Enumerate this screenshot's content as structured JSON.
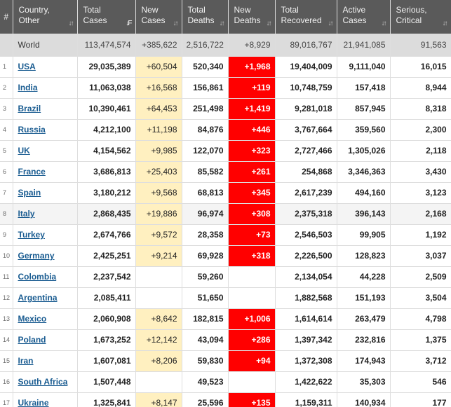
{
  "header": {
    "index": "#",
    "country": "Country,\nOther",
    "total_cases": "Total\nCases",
    "new_cases": "New\nCases",
    "total_deaths": "Total\nDeaths",
    "new_deaths": "New\nDeaths",
    "total_recovered": "Total\nRecovered",
    "active_cases": "Active\nCases",
    "serious_critical": "Serious,\nCritical"
  },
  "sort": {
    "active_column": "total_cases",
    "icon": "sort-arrows-icon"
  },
  "colors": {
    "header_bg": "#5a5a5a",
    "new_cases_highlight": "#fff0c0",
    "new_deaths_highlight": "#ff0000",
    "world_row_bg": "#dcdcdc",
    "link": "#1a5c91"
  },
  "world": {
    "country": "World",
    "total_cases": "113,474,574",
    "new_cases": "+385,622",
    "total_deaths": "2,516,722",
    "new_deaths": "+8,929",
    "total_recovered": "89,016,767",
    "active_cases": "21,941,085",
    "serious_critical": "91,563"
  },
  "rows": [
    {
      "index": "1",
      "country": "USA",
      "total_cases": "29,035,389",
      "new_cases": "+60,504",
      "total_deaths": "520,340",
      "new_deaths": "+1,968",
      "total_recovered": "19,404,009",
      "active_cases": "9,111,040",
      "serious_critical": "16,015"
    },
    {
      "index": "2",
      "country": "India",
      "total_cases": "11,063,038",
      "new_cases": "+16,568",
      "total_deaths": "156,861",
      "new_deaths": "+119",
      "total_recovered": "10,748,759",
      "active_cases": "157,418",
      "serious_critical": "8,944"
    },
    {
      "index": "3",
      "country": "Brazil",
      "total_cases": "10,390,461",
      "new_cases": "+64,453",
      "total_deaths": "251,498",
      "new_deaths": "+1,419",
      "total_recovered": "9,281,018",
      "active_cases": "857,945",
      "serious_critical": "8,318"
    },
    {
      "index": "4",
      "country": "Russia",
      "total_cases": "4,212,100",
      "new_cases": "+11,198",
      "total_deaths": "84,876",
      "new_deaths": "+446",
      "total_recovered": "3,767,664",
      "active_cases": "359,560",
      "serious_critical": "2,300"
    },
    {
      "index": "5",
      "country": "UK",
      "total_cases": "4,154,562",
      "new_cases": "+9,985",
      "total_deaths": "122,070",
      "new_deaths": "+323",
      "total_recovered": "2,727,466",
      "active_cases": "1,305,026",
      "serious_critical": "2,118"
    },
    {
      "index": "6",
      "country": "France",
      "total_cases": "3,686,813",
      "new_cases": "+25,403",
      "total_deaths": "85,582",
      "new_deaths": "+261",
      "total_recovered": "254,868",
      "active_cases": "3,346,363",
      "serious_critical": "3,430"
    },
    {
      "index": "7",
      "country": "Spain",
      "total_cases": "3,180,212",
      "new_cases": "+9,568",
      "total_deaths": "68,813",
      "new_deaths": "+345",
      "total_recovered": "2,617,239",
      "active_cases": "494,160",
      "serious_critical": "3,123"
    },
    {
      "index": "8",
      "country": "Italy",
      "total_cases": "2,868,435",
      "new_cases": "+19,886",
      "total_deaths": "96,974",
      "new_deaths": "+308",
      "total_recovered": "2,375,318",
      "active_cases": "396,143",
      "serious_critical": "2,168"
    },
    {
      "index": "9",
      "country": "Turkey",
      "total_cases": "2,674,766",
      "new_cases": "+9,572",
      "total_deaths": "28,358",
      "new_deaths": "+73",
      "total_recovered": "2,546,503",
      "active_cases": "99,905",
      "serious_critical": "1,192"
    },
    {
      "index": "10",
      "country": "Germany",
      "total_cases": "2,425,251",
      "new_cases": "+9,214",
      "total_deaths": "69,928",
      "new_deaths": "+318",
      "total_recovered": "2,226,500",
      "active_cases": "128,823",
      "serious_critical": "3,037"
    },
    {
      "index": "11",
      "country": "Colombia",
      "total_cases": "2,237,542",
      "new_cases": "",
      "total_deaths": "59,260",
      "new_deaths": "",
      "total_recovered": "2,134,054",
      "active_cases": "44,228",
      "serious_critical": "2,509"
    },
    {
      "index": "12",
      "country": "Argentina",
      "total_cases": "2,085,411",
      "new_cases": "",
      "total_deaths": "51,650",
      "new_deaths": "",
      "total_recovered": "1,882,568",
      "active_cases": "151,193",
      "serious_critical": "3,504"
    },
    {
      "index": "13",
      "country": "Mexico",
      "total_cases": "2,060,908",
      "new_cases": "+8,642",
      "total_deaths": "182,815",
      "new_deaths": "+1,006",
      "total_recovered": "1,614,614",
      "active_cases": "263,479",
      "serious_critical": "4,798"
    },
    {
      "index": "14",
      "country": "Poland",
      "total_cases": "1,673,252",
      "new_cases": "+12,142",
      "total_deaths": "43,094",
      "new_deaths": "+286",
      "total_recovered": "1,397,342",
      "active_cases": "232,816",
      "serious_critical": "1,375"
    },
    {
      "index": "15",
      "country": "Iran",
      "total_cases": "1,607,081",
      "new_cases": "+8,206",
      "total_deaths": "59,830",
      "new_deaths": "+94",
      "total_recovered": "1,372,308",
      "active_cases": "174,943",
      "serious_critical": "3,712"
    },
    {
      "index": "16",
      "country": "South Africa",
      "total_cases": "1,507,448",
      "new_cases": "",
      "total_deaths": "49,523",
      "new_deaths": "",
      "total_recovered": "1,422,622",
      "active_cases": "35,303",
      "serious_critical": "546"
    },
    {
      "index": "17",
      "country": "Ukraine",
      "total_cases": "1,325,841",
      "new_cases": "+8,147",
      "total_deaths": "25,596",
      "new_deaths": "+135",
      "total_recovered": "1,159,311",
      "active_cases": "140,934",
      "serious_critical": "177"
    }
  ]
}
